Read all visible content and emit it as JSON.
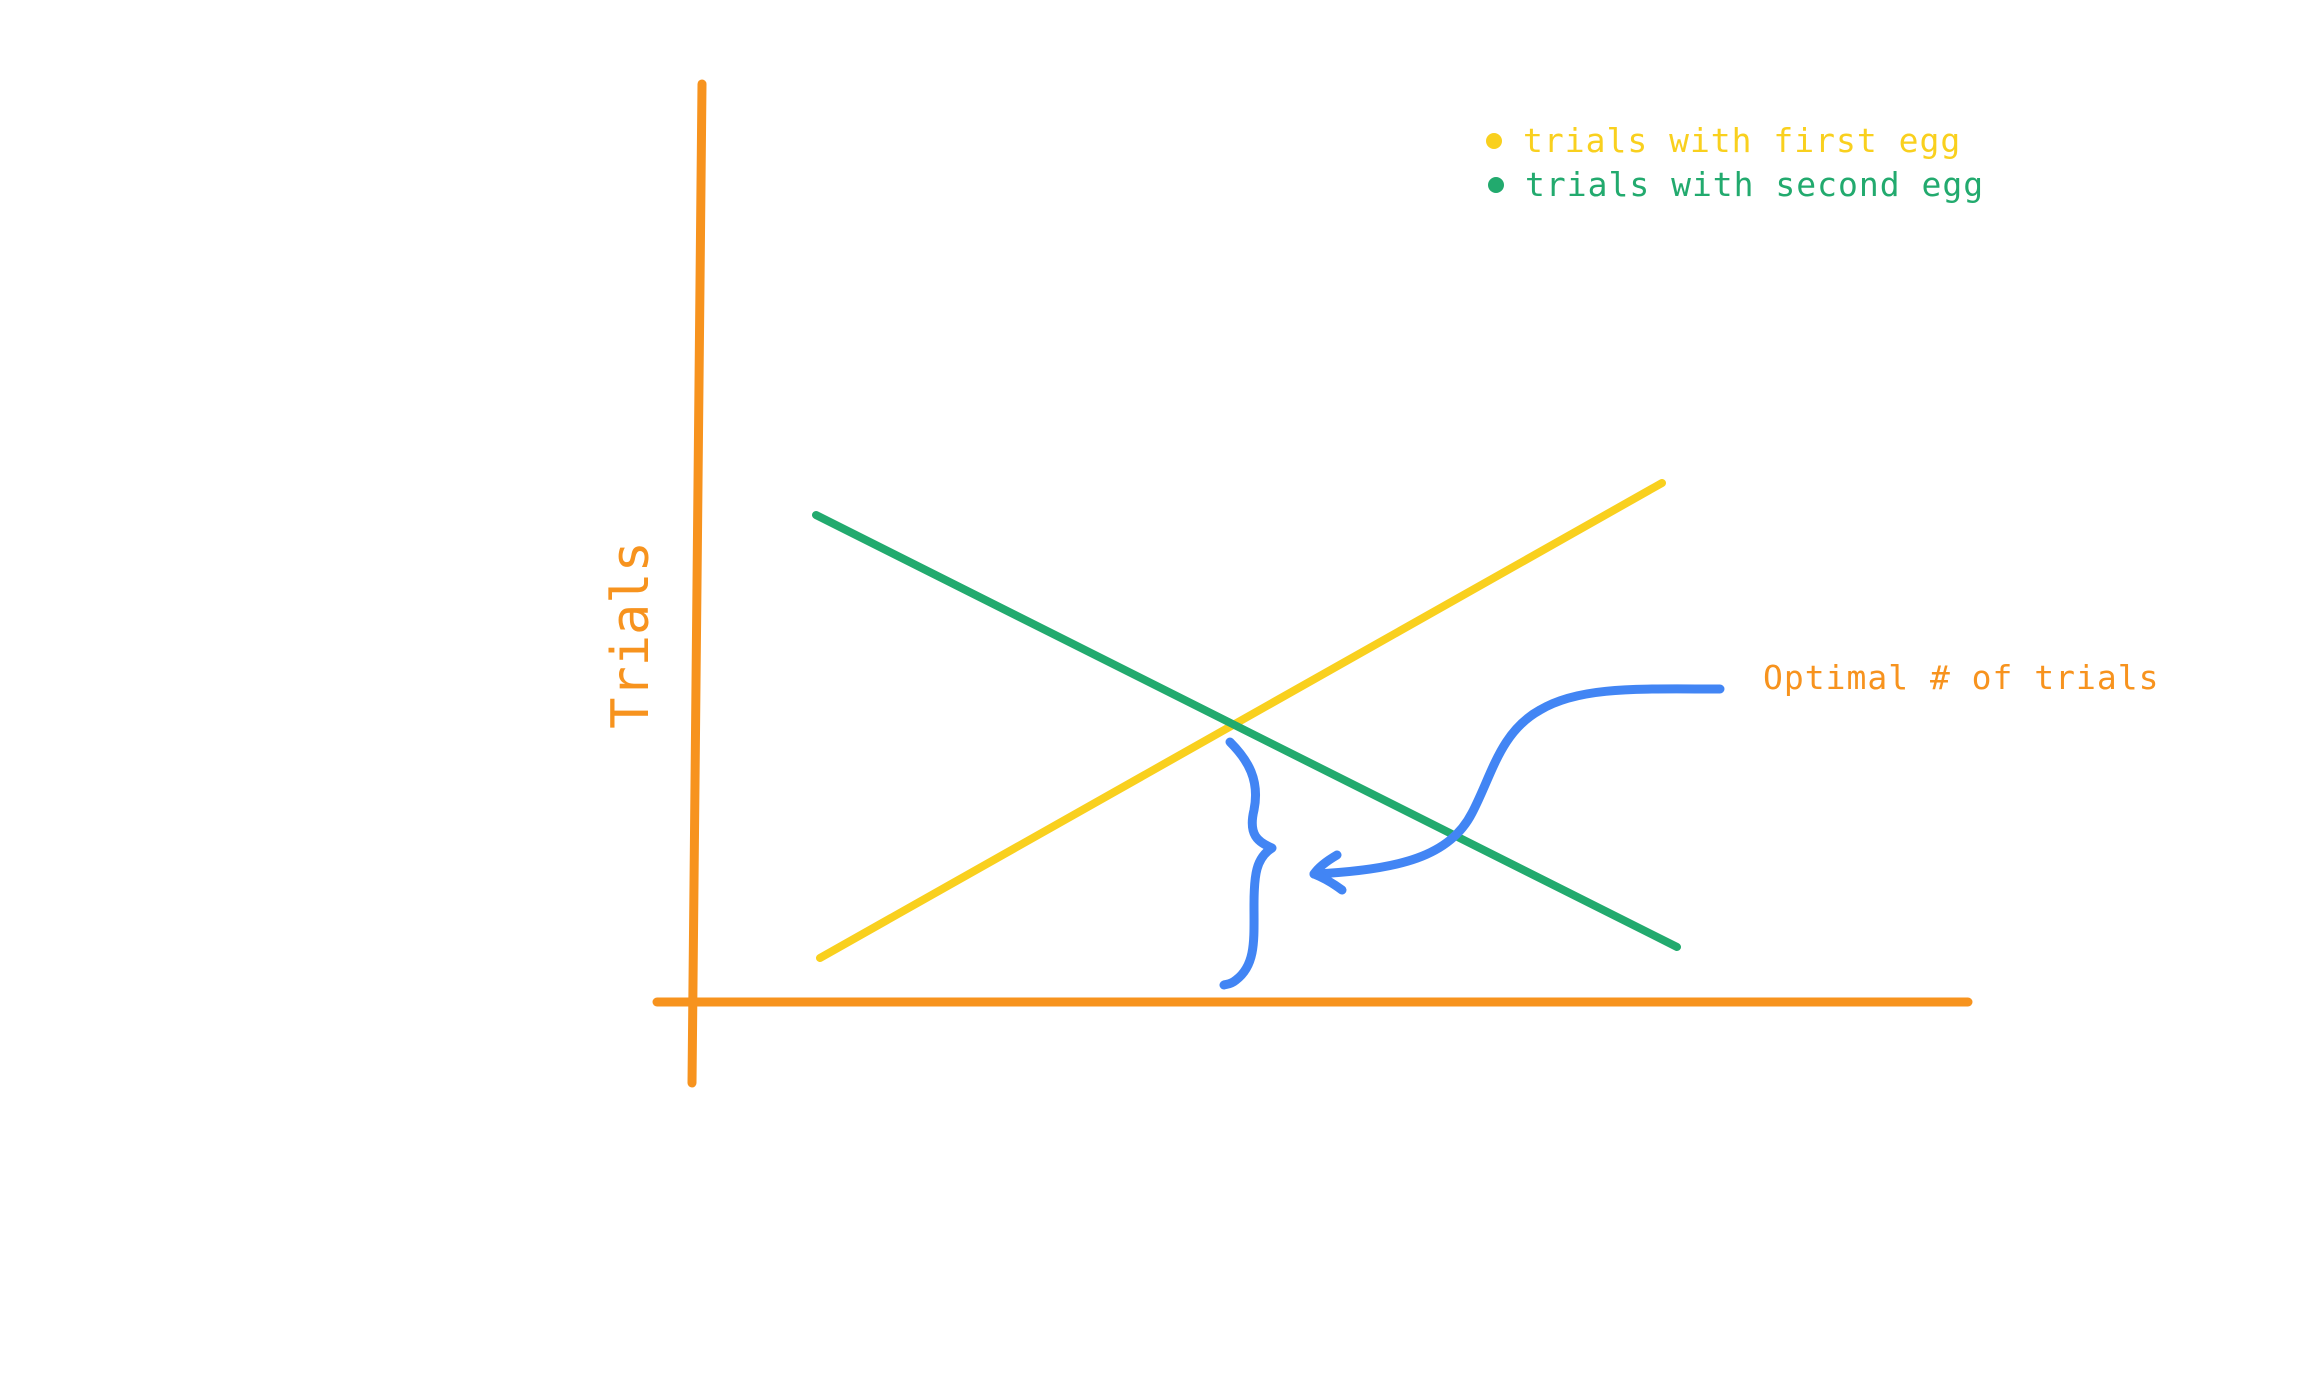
{
  "colors": {
    "axis": "#F7931E",
    "first_egg": "#F9D01E",
    "second_egg": "#22AA6E",
    "annotation": "#4285F4"
  },
  "chart_data": {
    "type": "line",
    "ylabel": "Trials",
    "legend_placement": "top-right",
    "series": [
      {
        "name": "trials with first egg",
        "color": "#F9D01E",
        "x": [
          0,
          10
        ],
        "y": [
          0,
          10
        ]
      },
      {
        "name": "trials with second egg",
        "color": "#22AA6E",
        "x": [
          0,
          10
        ],
        "y": [
          10,
          0
        ]
      }
    ],
    "annotation": {
      "text": "Optimal # of trials",
      "color": "#F7931E",
      "arrow_color": "#4285F4"
    }
  }
}
